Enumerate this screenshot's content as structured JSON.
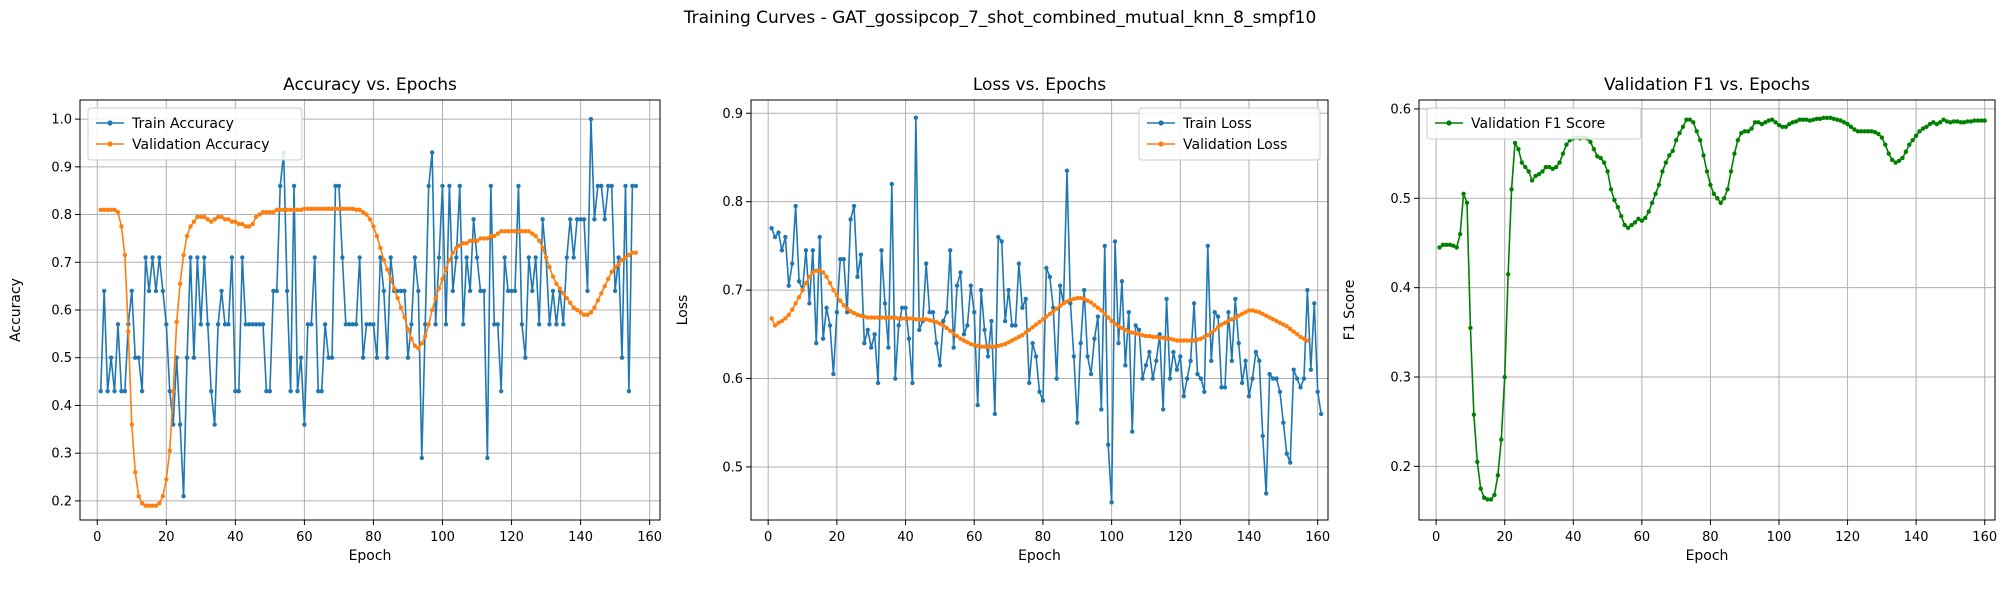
{
  "suptitle": "Training Curves - GAT_gossipcop_7_shot_combined_mutual_knn_8_smpf10",
  "colors": {
    "blue": "#1f77b4",
    "orange": "#ff7f0e",
    "green": "#008000",
    "grid": "#b0b0b0"
  },
  "chart_data": [
    {
      "type": "line",
      "title": "Accuracy vs. Epochs",
      "xlabel": "Epoch",
      "ylabel": "Accuracy",
      "xlim": [
        -5,
        163
      ],
      "ylim": [
        0.16,
        1.04
      ],
      "xticks": [
        0,
        20,
        40,
        60,
        80,
        100,
        120,
        140,
        160
      ],
      "yticks": [
        0.2,
        0.3,
        0.4,
        0.5,
        0.6,
        0.7,
        0.8,
        0.9,
        1.0
      ],
      "grid": true,
      "legend": "upper-left",
      "series": [
        {
          "name": "Train Accuracy",
          "color": "#1f77b4",
          "values": [
            0.43,
            0.64,
            0.43,
            0.5,
            0.43,
            0.57,
            0.43,
            0.43,
            0.57,
            0.64,
            0.5,
            0.5,
            0.43,
            0.71,
            0.64,
            0.71,
            0.64,
            0.71,
            0.64,
            0.57,
            0.43,
            0.36,
            0.5,
            0.36,
            0.21,
            0.5,
            0.71,
            0.5,
            0.71,
            0.57,
            0.71,
            0.57,
            0.43,
            0.36,
            0.57,
            0.64,
            0.57,
            0.57,
            0.71,
            0.43,
            0.43,
            0.71,
            0.57,
            0.57,
            0.57,
            0.57,
            0.57,
            0.57,
            0.43,
            0.43,
            0.64,
            0.64,
            0.86,
            0.93,
            0.64,
            0.43,
            0.86,
            0.43,
            0.5,
            0.36,
            0.57,
            0.57,
            0.71,
            0.43,
            0.43,
            0.57,
            0.5,
            0.5,
            0.86,
            0.86,
            0.71,
            0.57,
            0.57,
            0.57,
            0.57,
            0.71,
            0.5,
            0.57,
            0.57,
            0.57,
            0.5,
            0.71,
            0.64,
            0.5,
            0.71,
            0.64,
            0.64,
            0.64,
            0.64,
            0.5,
            0.57,
            0.71,
            0.64,
            0.29,
            0.57,
            0.86,
            0.93,
            0.57,
            0.71,
            0.86,
            0.57,
            0.86,
            0.64,
            0.71,
            0.86,
            0.57,
            0.71,
            0.64,
            0.79,
            0.71,
            0.64,
            0.64,
            0.29,
            0.86,
            0.57,
            0.57,
            0.43,
            0.71,
            0.64,
            0.64,
            0.64,
            0.86,
            0.57,
            0.5,
            0.71,
            0.64,
            0.71,
            0.57,
            0.79,
            0.71,
            0.57,
            0.64,
            0.57,
            0.64,
            0.57,
            0.71,
            0.79,
            0.71,
            0.79,
            0.79,
            0.79,
            0.64,
            1.0,
            0.79,
            0.86,
            0.86,
            0.79,
            0.86,
            0.86,
            0.64,
            0.71,
            0.5,
            0.86,
            0.43,
            0.86,
            0.86
          ]
        },
        {
          "name": "Validation Accuracy",
          "color": "#ff7f0e",
          "values": [
            0.81,
            0.81,
            0.81,
            0.81,
            0.81,
            0.805,
            0.775,
            0.715,
            0.555,
            0.36,
            0.26,
            0.21,
            0.195,
            0.19,
            0.19,
            0.19,
            0.19,
            0.195,
            0.21,
            0.245,
            0.305,
            0.43,
            0.575,
            0.655,
            0.715,
            0.755,
            0.775,
            0.785,
            0.795,
            0.795,
            0.795,
            0.79,
            0.785,
            0.79,
            0.795,
            0.795,
            0.79,
            0.79,
            0.785,
            0.785,
            0.78,
            0.78,
            0.775,
            0.775,
            0.78,
            0.795,
            0.8,
            0.805,
            0.805,
            0.805,
            0.805,
            0.81,
            0.81,
            0.81,
            0.81,
            0.81,
            0.81,
            0.81,
            0.81,
            0.812,
            0.812,
            0.812,
            0.812,
            0.812,
            0.812,
            0.812,
            0.812,
            0.812,
            0.812,
            0.812,
            0.812,
            0.812,
            0.812,
            0.812,
            0.81,
            0.81,
            0.805,
            0.8,
            0.79,
            0.775,
            0.755,
            0.73,
            0.705,
            0.685,
            0.665,
            0.645,
            0.625,
            0.605,
            0.585,
            0.56,
            0.54,
            0.525,
            0.52,
            0.53,
            0.545,
            0.57,
            0.6,
            0.625,
            0.645,
            0.665,
            0.685,
            0.705,
            0.72,
            0.73,
            0.735,
            0.74,
            0.74,
            0.745,
            0.745,
            0.745,
            0.75,
            0.75,
            0.75,
            0.755,
            0.755,
            0.76,
            0.765,
            0.765,
            0.765,
            0.765,
            0.765,
            0.765,
            0.765,
            0.765,
            0.765,
            0.76,
            0.755,
            0.745,
            0.73,
            0.71,
            0.69,
            0.67,
            0.655,
            0.645,
            0.635,
            0.625,
            0.615,
            0.605,
            0.6,
            0.595,
            0.59,
            0.59,
            0.595,
            0.605,
            0.62,
            0.635,
            0.65,
            0.665,
            0.68,
            0.69,
            0.695,
            0.705,
            0.71,
            0.715,
            0.72,
            0.72
          ]
        }
      ]
    },
    {
      "type": "line",
      "title": "Loss vs. Epochs",
      "xlabel": "Epoch",
      "ylabel": "Loss",
      "xlim": [
        -5,
        163
      ],
      "ylim": [
        0.44,
        0.915
      ],
      "xticks": [
        0,
        20,
        40,
        60,
        80,
        100,
        120,
        140,
        160
      ],
      "yticks": [
        0.5,
        0.6,
        0.7,
        0.8,
        0.9
      ],
      "grid": true,
      "legend": "upper-right",
      "series": [
        {
          "name": "Train Loss",
          "color": "#1f77b4",
          "values": [
            0.77,
            0.76,
            0.765,
            0.745,
            0.76,
            0.705,
            0.73,
            0.795,
            0.71,
            0.7,
            0.745,
            0.685,
            0.745,
            0.64,
            0.76,
            0.645,
            0.68,
            0.66,
            0.605,
            0.675,
            0.735,
            0.735,
            0.675,
            0.78,
            0.795,
            0.715,
            0.74,
            0.64,
            0.655,
            0.635,
            0.65,
            0.595,
            0.745,
            0.685,
            0.635,
            0.82,
            0.6,
            0.66,
            0.68,
            0.68,
            0.645,
            0.595,
            0.895,
            0.655,
            0.665,
            0.73,
            0.675,
            0.675,
            0.64,
            0.615,
            0.665,
            0.675,
            0.745,
            0.635,
            0.705,
            0.72,
            0.65,
            0.66,
            0.705,
            0.675,
            0.57,
            0.7,
            0.655,
            0.625,
            0.665,
            0.56,
            0.76,
            0.755,
            0.665,
            0.7,
            0.66,
            0.66,
            0.73,
            0.68,
            0.69,
            0.595,
            0.64,
            0.625,
            0.585,
            0.575,
            0.725,
            0.715,
            0.68,
            0.6,
            0.705,
            0.685,
            0.835,
            0.685,
            0.625,
            0.55,
            0.64,
            0.7,
            0.625,
            0.605,
            0.645,
            0.67,
            0.565,
            0.75,
            0.525,
            0.46,
            0.755,
            0.64,
            0.71,
            0.615,
            0.675,
            0.54,
            0.66,
            0.655,
            0.6,
            0.615,
            0.63,
            0.6,
            0.62,
            0.65,
            0.565,
            0.69,
            0.6,
            0.63,
            0.61,
            0.625,
            0.58,
            0.6,
            0.62,
            0.685,
            0.605,
            0.6,
            0.585,
            0.75,
            0.62,
            0.675,
            0.67,
            0.59,
            0.59,
            0.675,
            0.62,
            0.69,
            0.64,
            0.595,
            0.62,
            0.58,
            0.6,
            0.63,
            0.62,
            0.535,
            0.47,
            0.605,
            0.6,
            0.6,
            0.585,
            0.55,
            0.515,
            0.505,
            0.61,
            0.6,
            0.59,
            0.6,
            0.7,
            0.61,
            0.685,
            0.585,
            0.56
          ]
        },
        {
          "name": "Validation Loss",
          "color": "#ff7f0e",
          "values": [
            0.668,
            0.66,
            0.663,
            0.665,
            0.668,
            0.672,
            0.678,
            0.685,
            0.692,
            0.7,
            0.708,
            0.715,
            0.72,
            0.722,
            0.722,
            0.72,
            0.715,
            0.708,
            0.7,
            0.694,
            0.688,
            0.683,
            0.679,
            0.676,
            0.674,
            0.672,
            0.671,
            0.67,
            0.669,
            0.669,
            0.669,
            0.669,
            0.669,
            0.669,
            0.669,
            0.669,
            0.669,
            0.668,
            0.668,
            0.668,
            0.668,
            0.668,
            0.667,
            0.667,
            0.667,
            0.667,
            0.666,
            0.665,
            0.664,
            0.662,
            0.66,
            0.657,
            0.654,
            0.651,
            0.648,
            0.645,
            0.643,
            0.641,
            0.639,
            0.638,
            0.637,
            0.636,
            0.636,
            0.636,
            0.636,
            0.636,
            0.637,
            0.638,
            0.639,
            0.641,
            0.643,
            0.645,
            0.647,
            0.649,
            0.652,
            0.655,
            0.658,
            0.661,
            0.664,
            0.667,
            0.67,
            0.673,
            0.676,
            0.679,
            0.682,
            0.685,
            0.687,
            0.689,
            0.69,
            0.691,
            0.691,
            0.69,
            0.688,
            0.686,
            0.683,
            0.68,
            0.677,
            0.673,
            0.669,
            0.665,
            0.662,
            0.659,
            0.657,
            0.655,
            0.653,
            0.652,
            0.651,
            0.65,
            0.649,
            0.648,
            0.648,
            0.647,
            0.647,
            0.646,
            0.646,
            0.645,
            0.645,
            0.644,
            0.643,
            0.643,
            0.643,
            0.643,
            0.643,
            0.643,
            0.644,
            0.645,
            0.647,
            0.649,
            0.652,
            0.655,
            0.658,
            0.661,
            0.663,
            0.665,
            0.667,
            0.669,
            0.671,
            0.673,
            0.675,
            0.677,
            0.677,
            0.676,
            0.675,
            0.673,
            0.671,
            0.669,
            0.667,
            0.665,
            0.663,
            0.661,
            0.659,
            0.656,
            0.653,
            0.65,
            0.647,
            0.645,
            0.643
          ]
        }
      ]
    },
    {
      "type": "line",
      "title": "Validation F1 vs. Epochs",
      "xlabel": "Epoch",
      "ylabel": "F1 Score",
      "xlim": [
        -5,
        163
      ],
      "ylim": [
        0.14,
        0.61
      ],
      "xticks": [
        0,
        20,
        40,
        60,
        80,
        100,
        120,
        140,
        160
      ],
      "yticks": [
        0.2,
        0.3,
        0.4,
        0.5,
        0.6
      ],
      "grid": true,
      "legend": "upper-left",
      "series": [
        {
          "name": "Validation F1 Score",
          "color": "#008000",
          "values": [
            0.445,
            0.448,
            0.448,
            0.448,
            0.447,
            0.445,
            0.46,
            0.505,
            0.495,
            0.355,
            0.258,
            0.205,
            0.175,
            0.165,
            0.163,
            0.163,
            0.168,
            0.19,
            0.23,
            0.3,
            0.415,
            0.51,
            0.562,
            0.555,
            0.54,
            0.535,
            0.53,
            0.52,
            0.525,
            0.527,
            0.53,
            0.535,
            0.535,
            0.533,
            0.535,
            0.54,
            0.55,
            0.56,
            0.565,
            0.567,
            0.568,
            0.567,
            0.568,
            0.567,
            0.563,
            0.555,
            0.547,
            0.545,
            0.54,
            0.53,
            0.51,
            0.498,
            0.49,
            0.48,
            0.47,
            0.467,
            0.47,
            0.473,
            0.477,
            0.475,
            0.478,
            0.485,
            0.495,
            0.505,
            0.515,
            0.53,
            0.54,
            0.548,
            0.553,
            0.565,
            0.573,
            0.58,
            0.588,
            0.588,
            0.585,
            0.575,
            0.565,
            0.548,
            0.53,
            0.515,
            0.505,
            0.5,
            0.495,
            0.5,
            0.51,
            0.53,
            0.55,
            0.565,
            0.573,
            0.575,
            0.575,
            0.578,
            0.585,
            0.585,
            0.583,
            0.585,
            0.587,
            0.588,
            0.585,
            0.582,
            0.58,
            0.58,
            0.583,
            0.585,
            0.586,
            0.588,
            0.588,
            0.588,
            0.587,
            0.588,
            0.589,
            0.589,
            0.59,
            0.59,
            0.59,
            0.589,
            0.588,
            0.587,
            0.585,
            0.583,
            0.58,
            0.577,
            0.575,
            0.575,
            0.575,
            0.575,
            0.575,
            0.574,
            0.572,
            0.568,
            0.56,
            0.55,
            0.543,
            0.54,
            0.542,
            0.545,
            0.552,
            0.56,
            0.565,
            0.57,
            0.575,
            0.578,
            0.58,
            0.583,
            0.585,
            0.583,
            0.585,
            0.588,
            0.586,
            0.585,
            0.586,
            0.586,
            0.585,
            0.585,
            0.586,
            0.586,
            0.587,
            0.587,
            0.587,
            0.587
          ]
        }
      ]
    }
  ]
}
